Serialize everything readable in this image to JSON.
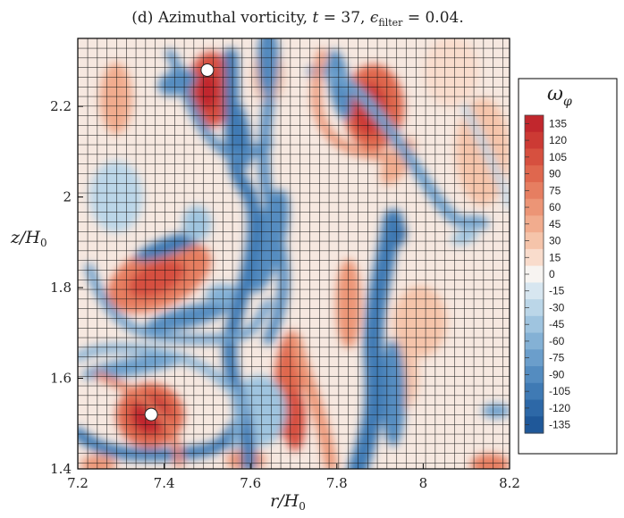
{
  "chart_data": {
    "type": "heatmap",
    "title": "(d) Azimuthal vorticity, t = 37, ϵ_filter = 0.04.",
    "title_parts": {
      "prefix": "(d) Azimuthal vorticity, ",
      "t_symbol": "t",
      "t_equals": " = 37, ",
      "eps_symbol": "ϵ",
      "eps_sub": "filter",
      "eps_value": " = 0.04."
    },
    "xlabel": "r/H0",
    "xlabel_parts": {
      "main": "r/H",
      "sub": "0"
    },
    "ylabel": "z/H0",
    "ylabel_parts": {
      "main": "z/H",
      "sub": "0"
    },
    "xlim": [
      7.2,
      8.2
    ],
    "ylim": [
      1.4,
      2.35
    ],
    "xticks": [
      "7.2",
      "7.4",
      "7.6",
      "7.8",
      "8",
      "8.2"
    ],
    "xtick_values": [
      7.2,
      7.4,
      7.6,
      7.8,
      8.0,
      8.2
    ],
    "yticks": [
      "1.4",
      "1.6",
      "1.8",
      "2",
      "2.2"
    ],
    "ytick_values": [
      1.4,
      1.6,
      1.8,
      2.0,
      2.2
    ],
    "grid": true,
    "colorbar": {
      "title": "ω_φ",
      "title_parts": {
        "main": "ω",
        "sub": "φ"
      },
      "levels": [
        "135",
        "120",
        "105",
        "90",
        "75",
        "60",
        "45",
        "30",
        "15",
        "0",
        "-15",
        "-30",
        "-45",
        "-60",
        "-75",
        "-90",
        "-105",
        "-120",
        "-135"
      ],
      "level_values": [
        135,
        120,
        105,
        90,
        75,
        60,
        45,
        30,
        15,
        0,
        -15,
        -30,
        -45,
        -60,
        -75,
        -90,
        -105,
        -120,
        -135
      ],
      "range": [
        -142.5,
        142.5
      ],
      "colors": [
        "#c1272d",
        "#cc3a34",
        "#d6503f",
        "#df674e",
        "#e67e61",
        "#ec9576",
        "#f1ac8e",
        "#f5c4aa",
        "#f9dccc",
        "#f7f4f1",
        "#d7e6f0",
        "#bbd6e8",
        "#9fc4df",
        "#84b1d5",
        "#6b9ecb",
        "#548cc0",
        "#3f7ab4",
        "#2d68a7",
        "#1f5899"
      ]
    },
    "features": [
      {
        "kind": "vortex",
        "sign": "positive",
        "r": 7.5,
        "z": 2.28,
        "peak": 135
      },
      {
        "kind": "vortex",
        "sign": "positive",
        "r": 7.87,
        "z": 2.24,
        "peak": 105
      },
      {
        "kind": "vortex",
        "sign": "positive",
        "r": 7.37,
        "z": 1.52,
        "peak": 135
      },
      {
        "kind": "vortex",
        "sign": "positive",
        "r": 7.36,
        "z": 1.84,
        "peak": 80
      },
      {
        "kind": "vortex",
        "sign": "negative",
        "r": 7.89,
        "z": 1.96,
        "peak": -120
      },
      {
        "kind": "filament",
        "sign": "negative",
        "from": [
          7.48,
          2.22
        ],
        "to": [
          7.6,
          1.45
        ]
      },
      {
        "kind": "filament",
        "sign": "negative",
        "from": [
          7.94,
          1.98
        ],
        "to": [
          7.81,
          1.4
        ]
      },
      {
        "kind": "filament",
        "sign": "negative",
        "from": [
          7.2,
          1.57
        ],
        "to": [
          7.45,
          1.52
        ]
      },
      {
        "kind": "filament",
        "sign": "positive",
        "from": [
          7.68,
          1.65
        ],
        "to": [
          7.7,
          1.42
        ]
      }
    ]
  }
}
